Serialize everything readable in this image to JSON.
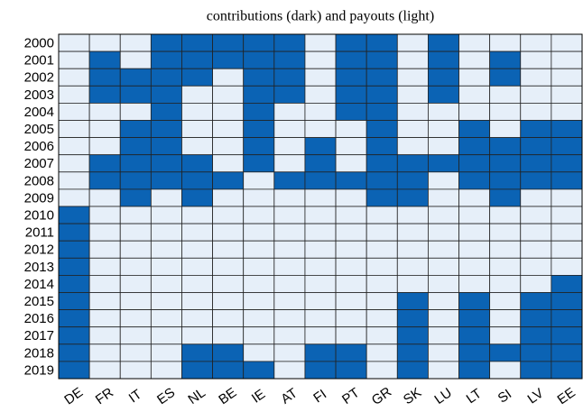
{
  "chart_data": {
    "type": "heatmap",
    "title": "contributions (dark) and payouts (light)",
    "x_categories": [
      "DE",
      "FR",
      "IT",
      "ES",
      "NL",
      "BE",
      "IE",
      "AT",
      "FI",
      "PT",
      "GR",
      "SK",
      "LU",
      "LT",
      "SI",
      "LV",
      "EE"
    ],
    "y_categories": [
      "2000",
      "2001",
      "2002",
      "2003",
      "2004",
      "2005",
      "2006",
      "2007",
      "2008",
      "2009",
      "2010",
      "2011",
      "2012",
      "2013",
      "2014",
      "2015",
      "2016",
      "2017",
      "2018",
      "2019"
    ],
    "values": [
      [
        0,
        0,
        0,
        1,
        1,
        1,
        1,
        1,
        0,
        1,
        1,
        0,
        1,
        0,
        0,
        0,
        0
      ],
      [
        0,
        1,
        0,
        1,
        1,
        1,
        1,
        1,
        0,
        1,
        1,
        0,
        1,
        0,
        1,
        0,
        0
      ],
      [
        0,
        1,
        1,
        1,
        1,
        0,
        1,
        1,
        0,
        1,
        1,
        0,
        1,
        0,
        1,
        0,
        0
      ],
      [
        0,
        1,
        1,
        1,
        0,
        0,
        1,
        1,
        0,
        1,
        1,
        0,
        1,
        0,
        0,
        0,
        0
      ],
      [
        0,
        0,
        0,
        1,
        0,
        0,
        1,
        0,
        0,
        1,
        1,
        0,
        0,
        0,
        0,
        0,
        0
      ],
      [
        0,
        0,
        1,
        1,
        0,
        0,
        1,
        0,
        0,
        0,
        1,
        0,
        0,
        1,
        0,
        1,
        1
      ],
      [
        0,
        0,
        1,
        1,
        0,
        0,
        1,
        0,
        1,
        0,
        1,
        0,
        0,
        1,
        1,
        1,
        1
      ],
      [
        0,
        1,
        1,
        1,
        1,
        0,
        1,
        0,
        1,
        0,
        1,
        1,
        1,
        1,
        1,
        1,
        1
      ],
      [
        0,
        1,
        1,
        1,
        1,
        1,
        0,
        1,
        1,
        1,
        1,
        1,
        0,
        1,
        1,
        1,
        1
      ],
      [
        0,
        0,
        1,
        0,
        1,
        0,
        0,
        0,
        0,
        0,
        1,
        1,
        0,
        0,
        1,
        0,
        0
      ],
      [
        1,
        0,
        0,
        0,
        0,
        0,
        0,
        0,
        0,
        0,
        0,
        0,
        0,
        0,
        0,
        0,
        0
      ],
      [
        1,
        0,
        0,
        0,
        0,
        0,
        0,
        0,
        0,
        0,
        0,
        0,
        0,
        0,
        0,
        0,
        0
      ],
      [
        1,
        0,
        0,
        0,
        0,
        0,
        0,
        0,
        0,
        0,
        0,
        0,
        0,
        0,
        0,
        0,
        0
      ],
      [
        1,
        0,
        0,
        0,
        0,
        0,
        0,
        0,
        0,
        0,
        0,
        0,
        0,
        0,
        0,
        0,
        0
      ],
      [
        1,
        0,
        0,
        0,
        0,
        0,
        0,
        0,
        0,
        0,
        0,
        0,
        0,
        0,
        0,
        0,
        1
      ],
      [
        1,
        0,
        0,
        0,
        0,
        0,
        0,
        0,
        0,
        0,
        0,
        1,
        0,
        1,
        0,
        1,
        1
      ],
      [
        1,
        0,
        0,
        0,
        0,
        0,
        0,
        0,
        0,
        0,
        0,
        1,
        0,
        1,
        0,
        1,
        1
      ],
      [
        1,
        0,
        0,
        0,
        0,
        0,
        0,
        0,
        0,
        0,
        0,
        1,
        0,
        1,
        0,
        1,
        1
      ],
      [
        1,
        0,
        0,
        0,
        1,
        1,
        0,
        0,
        1,
        1,
        0,
        1,
        0,
        1,
        1,
        1,
        1
      ],
      [
        1,
        0,
        0,
        0,
        1,
        1,
        1,
        0,
        1,
        1,
        0,
        1,
        0,
        1,
        0,
        1,
        1
      ]
    ],
    "colors": [
      "#e6eff9",
      "#0b63b4"
    ]
  }
}
